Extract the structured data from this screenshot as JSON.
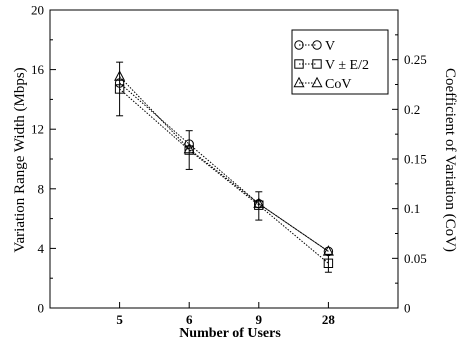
{
  "chart_data": {
    "type": "line",
    "categories": [
      "5",
      "6",
      "9",
      "28"
    ],
    "xlabel": "Number of Users",
    "ylabel": "Variation Range Width (Mbps)",
    "y2label": "Coefficient of Variation (CoV)",
    "ylim": [
      0,
      20
    ],
    "y2lim": [
      0,
      0.3
    ],
    "yticks": [
      "0",
      "4",
      "8",
      "12",
      "16",
      "20"
    ],
    "y2ticks": [
      "0",
      "0.05",
      "0.1",
      "0.15",
      "0.2",
      "0.25"
    ],
    "grid": false,
    "legend_position": "top-right",
    "series": [
      {
        "name": "V",
        "marker": "circle",
        "axis": "left",
        "values": [
          15.1,
          11.0,
          7.0,
          3.8
        ]
      },
      {
        "name": "V ± E/2",
        "marker": "square",
        "axis": "left",
        "values": [
          14.7,
          10.6,
          6.9,
          3.0
        ],
        "error_low": [
          12.9,
          9.3,
          5.9,
          2.4
        ],
        "error_high": [
          16.5,
          11.9,
          7.8,
          3.6
        ]
      },
      {
        "name": "CoV",
        "marker": "triangle",
        "axis": "right",
        "values": [
          0.233,
          0.16,
          0.105,
          0.057
        ]
      }
    ]
  }
}
